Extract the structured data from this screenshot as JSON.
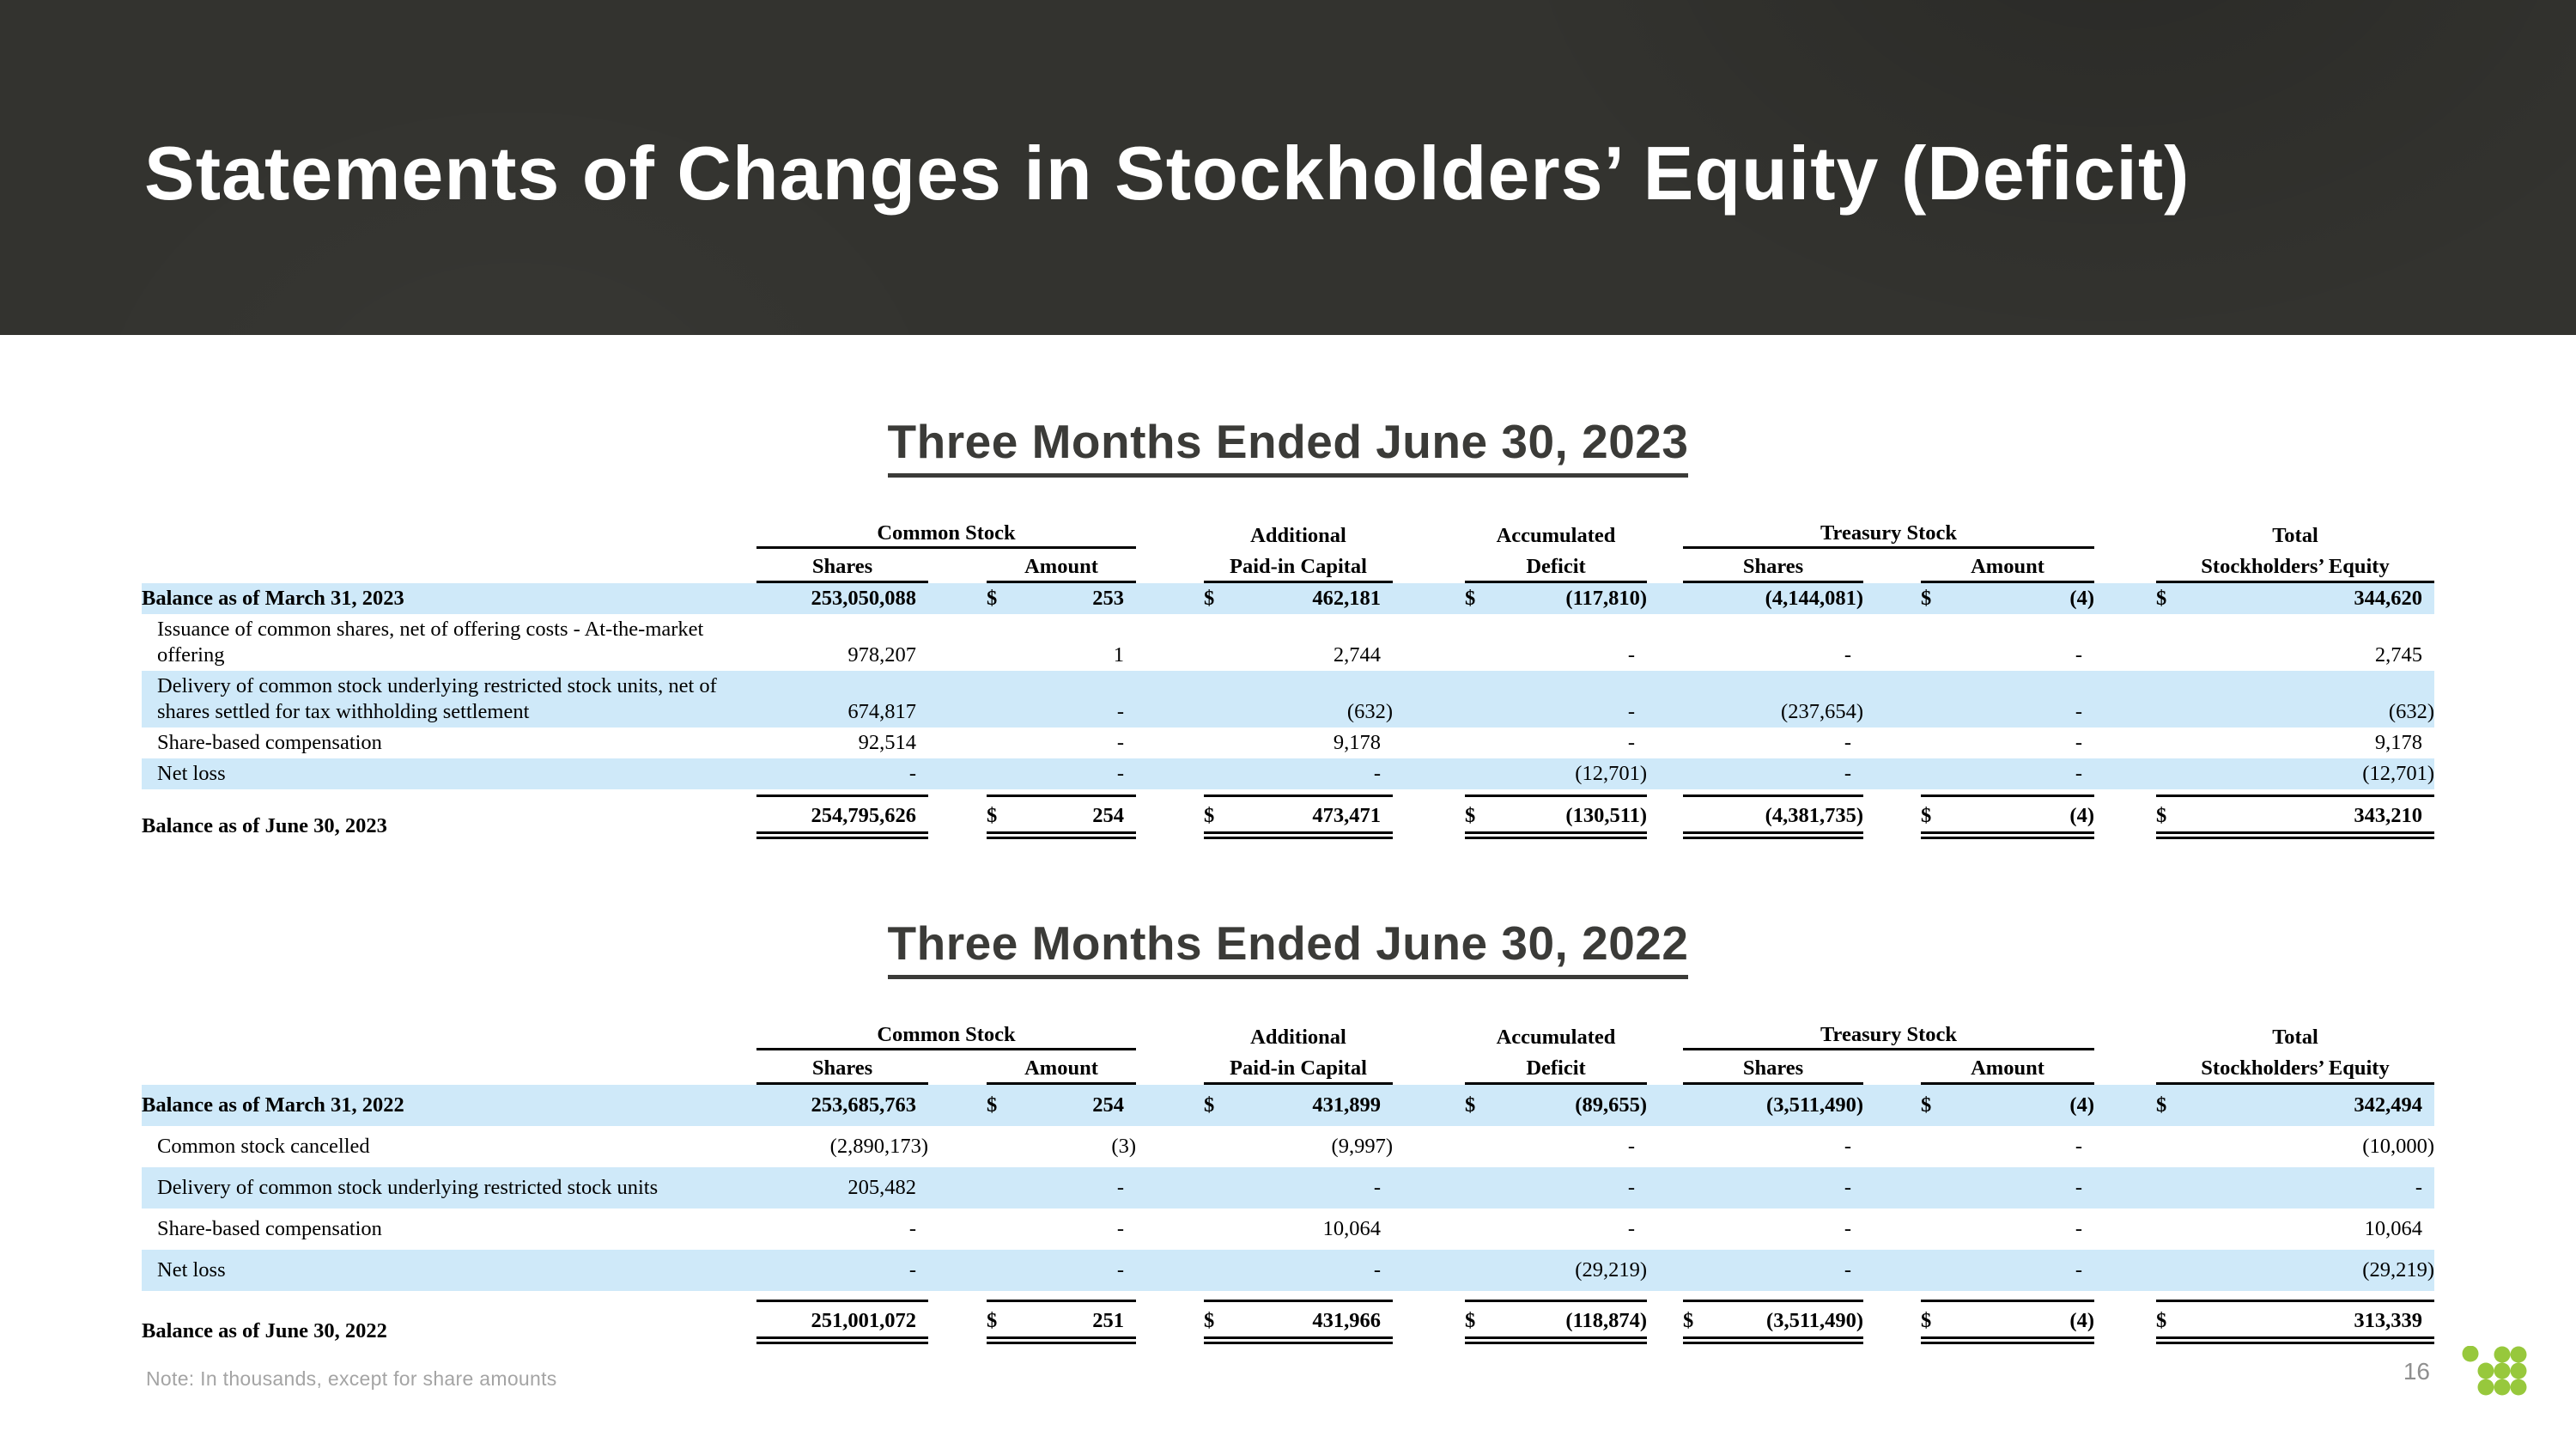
{
  "slide": {
    "title": "Statements of Changes in Stockholders’ Equity (Deficit)",
    "note": "Note: In thousands, except for share amounts",
    "page_number": "16"
  },
  "colors": {
    "banner_bg": "#33332f",
    "row_stripe": "#cfe9f9",
    "logo_green": "#97c83c",
    "section_title": "#3b3b38",
    "footer_gray": "#a4a4a4"
  },
  "icons": {
    "logo": "green-dot-grid-logo"
  },
  "tables": [
    {
      "title": "Three Months Ended June 30, 2023",
      "groups": [
        {
          "label": "Common Stock",
          "span": 2,
          "rule": true
        },
        {
          "label": "Additional",
          "span": 1,
          "rule": false
        },
        {
          "label": "Accumulated",
          "span": 1,
          "rule": false
        },
        {
          "label": "Treasury Stock",
          "span": 2,
          "rule": true
        },
        {
          "label": "Total",
          "span": 1,
          "rule": false
        }
      ],
      "columns": [
        "Shares",
        "Amount",
        "Paid-in Capital",
        "Deficit",
        "Shares",
        "Amount",
        "Stockholders’ Equity"
      ],
      "rows": [
        {
          "label": "Balance as of March 31, 2023",
          "bold": true,
          "shade": true,
          "total": false,
          "cells": [
            {
              "s": "",
              "v": "253,050,088"
            },
            {
              "s": "$",
              "v": "253"
            },
            {
              "s": "$",
              "v": "462,181"
            },
            {
              "s": "$",
              "v": "(117,810)"
            },
            {
              "s": "",
              "v": "(4,144,081)"
            },
            {
              "s": "$",
              "v": "(4)"
            },
            {
              "s": "$",
              "v": "344,620"
            }
          ]
        },
        {
          "label": "Issuance of common shares, net of offering costs - At-the-market offering",
          "bold": false,
          "shade": false,
          "total": false,
          "cells": [
            {
              "s": "",
              "v": "978,207"
            },
            {
              "s": "",
              "v": "1"
            },
            {
              "s": "",
              "v": "2,744"
            },
            {
              "s": "",
              "v": "-"
            },
            {
              "s": "",
              "v": "-"
            },
            {
              "s": "",
              "v": "-"
            },
            {
              "s": "",
              "v": "2,745"
            }
          ]
        },
        {
          "label": "Delivery of common stock underlying restricted stock units, net of shares settled for tax withholding settlement",
          "bold": false,
          "shade": true,
          "total": false,
          "cells": [
            {
              "s": "",
              "v": "674,817"
            },
            {
              "s": "",
              "v": "-"
            },
            {
              "s": "",
              "v": "(632)"
            },
            {
              "s": "",
              "v": "-"
            },
            {
              "s": "",
              "v": "(237,654)"
            },
            {
              "s": "",
              "v": "-"
            },
            {
              "s": "",
              "v": "(632)"
            }
          ]
        },
        {
          "label": "Share-based compensation",
          "bold": false,
          "shade": false,
          "total": false,
          "cells": [
            {
              "s": "",
              "v": "92,514"
            },
            {
              "s": "",
              "v": "-"
            },
            {
              "s": "",
              "v": "9,178"
            },
            {
              "s": "",
              "v": "-"
            },
            {
              "s": "",
              "v": "-"
            },
            {
              "s": "",
              "v": "-"
            },
            {
              "s": "",
              "v": "9,178"
            }
          ]
        },
        {
          "label": "Net loss",
          "bold": false,
          "shade": true,
          "total": false,
          "cells": [
            {
              "s": "",
              "v": "-"
            },
            {
              "s": "",
              "v": "-"
            },
            {
              "s": "",
              "v": "-"
            },
            {
              "s": "",
              "v": "(12,701)"
            },
            {
              "s": "",
              "v": "-"
            },
            {
              "s": "",
              "v": "-"
            },
            {
              "s": "",
              "v": "(12,701)"
            }
          ]
        },
        {
          "label": "Balance as of June 30, 2023",
          "bold": true,
          "shade": false,
          "total": true,
          "cells": [
            {
              "s": "",
              "v": "254,795,626"
            },
            {
              "s": "$",
              "v": "254"
            },
            {
              "s": "$",
              "v": "473,471"
            },
            {
              "s": "$",
              "v": "(130,511)"
            },
            {
              "s": "",
              "v": "(4,381,735)"
            },
            {
              "s": "$",
              "v": "(4)"
            },
            {
              "s": "$",
              "v": "343,210"
            }
          ]
        }
      ]
    },
    {
      "title": "Three Months Ended June 30, 2022",
      "groups": [
        {
          "label": "Common Stock",
          "span": 2,
          "rule": true
        },
        {
          "label": "Additional",
          "span": 1,
          "rule": false
        },
        {
          "label": "Accumulated",
          "span": 1,
          "rule": false
        },
        {
          "label": "Treasury Stock",
          "span": 2,
          "rule": true
        },
        {
          "label": "Total",
          "span": 1,
          "rule": false
        }
      ],
      "columns": [
        "Shares",
        "Amount",
        "Paid-in Capital",
        "Deficit",
        "Shares",
        "Amount",
        "Stockholders’ Equity"
      ],
      "rows": [
        {
          "label": "Balance as of March 31, 2022",
          "bold": true,
          "shade": true,
          "total": false,
          "cells": [
            {
              "s": "",
              "v": "253,685,763"
            },
            {
              "s": "$",
              "v": "254"
            },
            {
              "s": "$",
              "v": "431,899"
            },
            {
              "s": "$",
              "v": "(89,655)"
            },
            {
              "s": "",
              "v": "(3,511,490)"
            },
            {
              "s": "$",
              "v": "(4)"
            },
            {
              "s": "$",
              "v": "342,494"
            }
          ]
        },
        {
          "label": "Common stock cancelled",
          "bold": false,
          "shade": false,
          "total": false,
          "cells": [
            {
              "s": "",
              "v": "(2,890,173)"
            },
            {
              "s": "",
              "v": "(3)"
            },
            {
              "s": "",
              "v": "(9,997)"
            },
            {
              "s": "",
              "v": "-"
            },
            {
              "s": "",
              "v": "-"
            },
            {
              "s": "",
              "v": "-"
            },
            {
              "s": "",
              "v": "(10,000)"
            }
          ]
        },
        {
          "label": "Delivery of common stock underlying restricted stock units",
          "bold": false,
          "shade": true,
          "total": false,
          "cells": [
            {
              "s": "",
              "v": "205,482"
            },
            {
              "s": "",
              "v": "-"
            },
            {
              "s": "",
              "v": "-"
            },
            {
              "s": "",
              "v": "-"
            },
            {
              "s": "",
              "v": "-"
            },
            {
              "s": "",
              "v": "-"
            },
            {
              "s": "",
              "v": "-"
            }
          ]
        },
        {
          "label": "Share-based compensation",
          "bold": false,
          "shade": false,
          "total": false,
          "cells": [
            {
              "s": "",
              "v": "-"
            },
            {
              "s": "",
              "v": "-"
            },
            {
              "s": "",
              "v": "10,064"
            },
            {
              "s": "",
              "v": "-"
            },
            {
              "s": "",
              "v": "-"
            },
            {
              "s": "",
              "v": "-"
            },
            {
              "s": "",
              "v": "10,064"
            }
          ]
        },
        {
          "label": "Net loss",
          "bold": false,
          "shade": true,
          "total": false,
          "cells": [
            {
              "s": "",
              "v": "-"
            },
            {
              "s": "",
              "v": "-"
            },
            {
              "s": "",
              "v": "-"
            },
            {
              "s": "",
              "v": "(29,219)"
            },
            {
              "s": "",
              "v": "-"
            },
            {
              "s": "",
              "v": "-"
            },
            {
              "s": "",
              "v": "(29,219)"
            }
          ]
        },
        {
          "label": "Balance as of June 30, 2022",
          "bold": true,
          "shade": false,
          "total": true,
          "cells": [
            {
              "s": "",
              "v": "251,001,072"
            },
            {
              "s": "$",
              "v": "251"
            },
            {
              "s": "$",
              "v": "431,966"
            },
            {
              "s": "$",
              "v": "(118,874)"
            },
            {
              "s": "$",
              "v": "(3,511,490)"
            },
            {
              "s": "$",
              "v": "(4)"
            },
            {
              "s": "$",
              "v": "313,339"
            }
          ]
        }
      ]
    }
  ]
}
